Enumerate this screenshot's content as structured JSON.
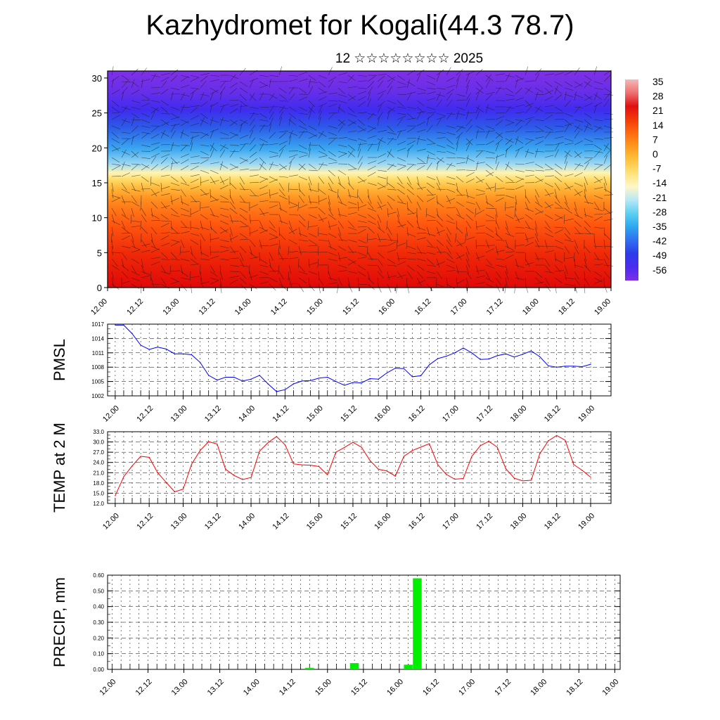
{
  "title": "Kazhydromet for Kogali(44.3 78.7)",
  "subtitle": "12 ☆☆☆☆☆☆☆☆ 2025",
  "time_ticks": [
    "12.00",
    "12.12",
    "13.00",
    "13.12",
    "14.00",
    "14.12",
    "15.00",
    "15.12",
    "16.00",
    "16.12",
    "17.00",
    "17.12",
    "18.00",
    "18.12",
    "19.00"
  ],
  "chart_data": [
    {
      "type": "heatmap",
      "description_free": true,
      "x": [
        "12.00",
        "12.12",
        "13.00",
        "13.12",
        "14.00",
        "14.12",
        "15.00",
        "15.12",
        "16.00",
        "16.12",
        "17.00",
        "17.12",
        "18.00",
        "18.12",
        "19.00"
      ],
      "y_ticks": [
        "0",
        "5",
        "10",
        "15",
        "20",
        "25",
        "30"
      ],
      "ylim": [
        0,
        31
      ],
      "colorbar_labels": [
        "35",
        "28",
        "21",
        "14",
        "7",
        "0",
        "-7",
        "-14",
        "-21",
        "-28",
        "-35",
        "-42",
        "-49",
        "-56"
      ],
      "colorbar_colors": [
        "#7e30e6",
        "#4b2cf0",
        "#2c3ce8",
        "#2f6ff0",
        "#2da6f0",
        "#5cd0f0",
        "#b7e8f6",
        "#fff7c8",
        "#ffe37a",
        "#ffc23c",
        "#ff9a1e",
        "#ff6a10",
        "#f43a08",
        "#e01010",
        "#ee7070",
        "#f6b8b8"
      ],
      "series": [
        {
          "name": "",
          "z_profile_by_height": [
            31,
            27,
            22,
            15,
            4,
            -5,
            -14,
            -25,
            -42,
            -52,
            -55,
            -58
          ]
        }
      ]
    },
    {
      "type": "line",
      "ylabel": "PMSL",
      "ylim": [
        1002,
        1017
      ],
      "y_ticks": [
        "1017",
        "1014",
        "1011",
        "1008",
        "1005",
        "1002"
      ],
      "x": [
        "12.00",
        "12.03",
        "12.06",
        "12.09",
        "12.12",
        "12.15",
        "12.18",
        "12.21",
        "13.00",
        "13.03",
        "13.06",
        "13.09",
        "13.12",
        "13.15",
        "13.18",
        "13.21",
        "14.00",
        "14.03",
        "14.06",
        "14.09",
        "14.12",
        "14.15",
        "14.18",
        "14.21",
        "15.00",
        "15.03",
        "15.06",
        "15.09",
        "15.12",
        "15.15",
        "15.18",
        "15.21",
        "16.00",
        "16.03",
        "16.06",
        "16.09",
        "16.12",
        "16.15",
        "16.18",
        "16.21",
        "17.00",
        "17.03",
        "17.06",
        "17.09",
        "17.12",
        "17.15",
        "17.18",
        "17.21",
        "18.00",
        "18.03",
        "18.06",
        "18.09",
        "18.12",
        "18.15",
        "18.18",
        "18.21",
        "19.00"
      ],
      "series": [
        {
          "name": "",
          "color": "#0000ff",
          "values": [
            1016.8,
            1016.8,
            1015.0,
            1012.6,
            1011.7,
            1012.2,
            1011.8,
            1010.8,
            1010.8,
            1010.6,
            1009.0,
            1006.3,
            1005.3,
            1005.9,
            1005.9,
            1005.1,
            1005.5,
            1006.3,
            1004.5,
            1002.9,
            1003.3,
            1004.5,
            1005.1,
            1005.2,
            1005.7,
            1005.9,
            1005.0,
            1004.2,
            1004.8,
            1004.7,
            1005.6,
            1005.5,
            1006.8,
            1007.8,
            1007.7,
            1006.0,
            1006.2,
            1008.5,
            1009.8,
            1010.3,
            1011.0,
            1012.0,
            1011.0,
            1009.6,
            1009.7,
            1010.4,
            1010.8,
            1010.1,
            1010.7,
            1011.4,
            1010.2,
            1008.3,
            1008.0,
            1008.2,
            1008.2,
            1008.1,
            1008.6
          ]
        }
      ]
    },
    {
      "type": "line",
      "ylabel": "TEMP at 2 M",
      "ylim": [
        12.0,
        33.0
      ],
      "y_ticks": [
        "33.0",
        "30.0",
        "27.0",
        "24.0",
        "21.0",
        "18.0",
        "15.0",
        "12.0"
      ],
      "x": [
        "12.00",
        "12.03",
        "12.06",
        "12.09",
        "12.12",
        "12.15",
        "12.18",
        "12.21",
        "13.00",
        "13.03",
        "13.06",
        "13.09",
        "13.12",
        "13.15",
        "13.18",
        "13.21",
        "14.00",
        "14.03",
        "14.06",
        "14.09",
        "14.12",
        "14.15",
        "14.18",
        "14.21",
        "15.00",
        "15.03",
        "15.06",
        "15.09",
        "15.12",
        "15.15",
        "15.18",
        "15.21",
        "16.00",
        "16.03",
        "16.06",
        "16.09",
        "16.12",
        "16.15",
        "16.18",
        "16.21",
        "17.00",
        "17.03",
        "17.06",
        "17.09",
        "17.12",
        "17.15",
        "17.18",
        "17.21",
        "18.00",
        "18.03",
        "18.06",
        "18.09",
        "18.12",
        "18.15",
        "18.18",
        "18.21",
        "19.00"
      ],
      "series": [
        {
          "name": "",
          "color": "#ff0000",
          "values": [
            14.3,
            19.8,
            23.0,
            25.8,
            25.5,
            21.0,
            18.2,
            15.4,
            16.2,
            23.5,
            27.5,
            30.1,
            29.4,
            22.0,
            20.2,
            19.0,
            19.6,
            27.3,
            29.8,
            31.6,
            29.2,
            23.6,
            23.3,
            23.2,
            22.8,
            20.4,
            27.0,
            28.4,
            29.9,
            28.5,
            24.6,
            22.0,
            21.5,
            20.0,
            25.8,
            27.5,
            28.5,
            29.5,
            23.3,
            20.5,
            19.1,
            19.3,
            25.8,
            28.9,
            30.2,
            28.5,
            22.2,
            19.4,
            18.6,
            18.8,
            26.5,
            30.3,
            31.9,
            30.5,
            23.4,
            21.7,
            19.7
          ]
        }
      ]
    },
    {
      "type": "bar",
      "ylabel": "PRECIP, mm",
      "ylim": [
        0,
        0.6
      ],
      "y_ticks": [
        "0.60",
        "0.50",
        "0.40",
        "0.30",
        "0.20",
        "0.10",
        "0.00"
      ],
      "x": [
        "12.00",
        "12.03",
        "12.06",
        "12.09",
        "12.12",
        "12.15",
        "12.18",
        "12.21",
        "13.00",
        "13.03",
        "13.06",
        "13.09",
        "13.12",
        "13.15",
        "13.18",
        "13.21",
        "14.00",
        "14.03",
        "14.06",
        "14.09",
        "14.12",
        "14.15",
        "14.18",
        "14.21",
        "15.00",
        "15.03",
        "15.06",
        "15.09",
        "15.12",
        "15.15",
        "15.18",
        "15.21",
        "16.00",
        "16.03",
        "16.06",
        "16.09",
        "16.12",
        "16.15",
        "16.18",
        "16.21",
        "17.00",
        "17.03",
        "17.06",
        "17.09",
        "17.12",
        "17.15",
        "17.18",
        "17.21",
        "18.00",
        "18.03",
        "18.06",
        "18.09",
        "18.12",
        "18.15",
        "18.18",
        "18.21",
        "19.00"
      ],
      "series": [
        {
          "name": "",
          "color": "#00ee00",
          "values": [
            0,
            0,
            0,
            0,
            0,
            0,
            0,
            0,
            0,
            0,
            0,
            0,
            0,
            0,
            0,
            0,
            0,
            0,
            0,
            0,
            0,
            0,
            0.01,
            0,
            0,
            0,
            0,
            0.04,
            0,
            0,
            0,
            0,
            0,
            0.03,
            0.58,
            0,
            0,
            0,
            0,
            0,
            0,
            0,
            0,
            0,
            0,
            0,
            0,
            0,
            0,
            0,
            0,
            0,
            0,
            0,
            0,
            0,
            0
          ]
        }
      ]
    }
  ]
}
